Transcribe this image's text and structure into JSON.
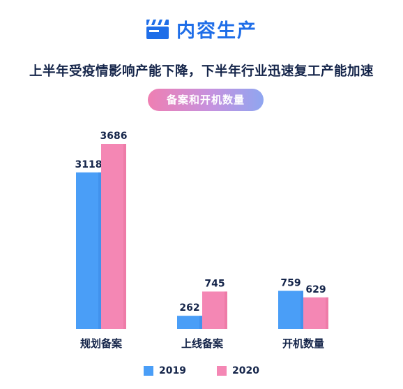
{
  "header": {
    "title": "内容生产",
    "icon": "clapperboard-icon"
  },
  "subtitle": "上半年受疫情影响产能下降，下半年行业迅速复工产能加速",
  "pill": "备案和开机数量",
  "colors": {
    "s2019": "#4a9ef7",
    "s2020": "#f487b4",
    "header": "#1f6ee8",
    "text": "#15254a"
  },
  "chart_data": {
    "type": "bar",
    "title": "备案和开机数量",
    "categories": [
      "规划备案",
      "上线备案",
      "开机数量"
    ],
    "series": [
      {
        "name": "2019",
        "values": [
          3118,
          262,
          759
        ]
      },
      {
        "name": "2020",
        "values": [
          3686,
          745,
          629
        ]
      }
    ],
    "ylim": [
      0,
      3686
    ],
    "grid": false,
    "legend": "bottom"
  }
}
